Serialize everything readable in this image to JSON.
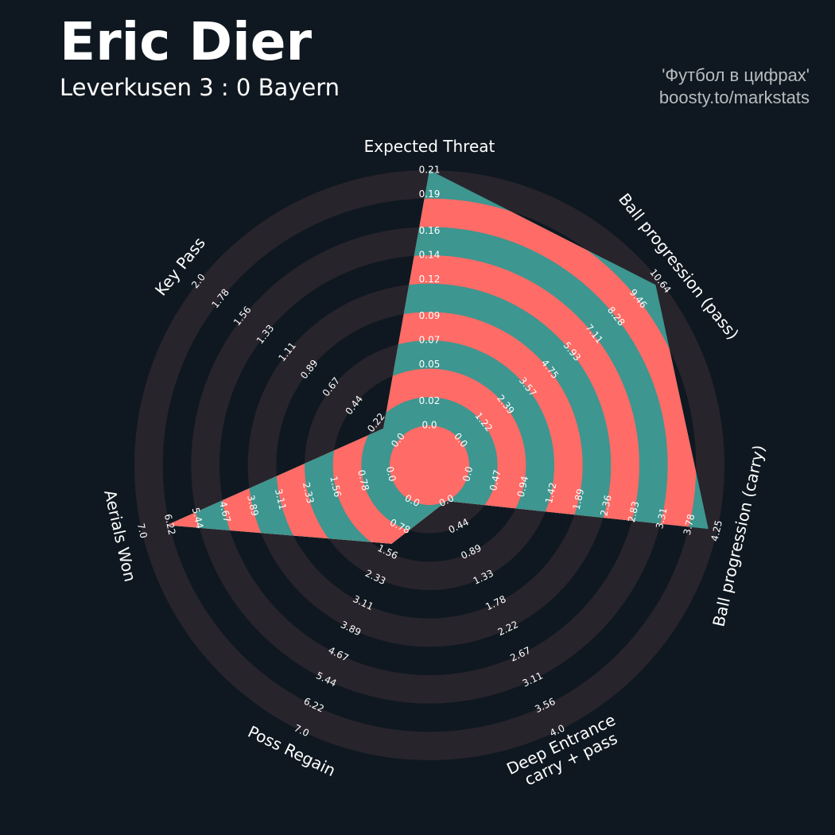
{
  "title": "Eric Dier",
  "subtitle": "Leverkusen 3 : 0 Bayern",
  "credits": [
    "'Футбол в цифрах'",
    "boosty.to/markstats"
  ],
  "chart_data": {
    "type": "radar",
    "parameters": [
      "Expected Threat",
      "Ball progression (pass)",
      "Ball progression (carry)",
      "Deep Entrance\ncarry + pass",
      "Poss Regain",
      "Aerials Won",
      "Key Pass"
    ],
    "ranges": [
      [
        0,
        0.21
      ],
      [
        0,
        10.64
      ],
      [
        0,
        4.25
      ],
      [
        0,
        4
      ],
      [
        0,
        7
      ],
      [
        0,
        7
      ],
      [
        0,
        2
      ]
    ],
    "ticks": [
      [
        {
          "value": 0,
          "label": "0.0"
        },
        0.02,
        0.05,
        0.07,
        0.09,
        0.12,
        0.14,
        0.16,
        0.19,
        0.21
      ],
      [
        {
          "value": 0,
          "label": "0.0"
        },
        1.22,
        2.39,
        3.57,
        4.75,
        5.93,
        7.11,
        8.28,
        9.46,
        10.64
      ],
      [
        {
          "value": 0,
          "label": "0.0"
        },
        0.47,
        0.94,
        1.42,
        1.89,
        2.36,
        2.83,
        3.31,
        3.78,
        4.25
      ],
      [
        {
          "value": 0,
          "label": "0.0"
        },
        0.44,
        0.89,
        1.33,
        1.78,
        2.22,
        2.67,
        3.11,
        3.56,
        {
          "value": 4,
          "label": "4.0"
        }
      ],
      [
        {
          "value": 0,
          "label": "0.0"
        },
        0.78,
        1.56,
        2.33,
        3.11,
        3.89,
        4.67,
        5.44,
        6.22,
        {
          "value": 7,
          "label": "7.0"
        }
      ],
      [
        {
          "value": 0,
          "label": "0.0"
        },
        0.78,
        1.56,
        2.33,
        3.11,
        3.89,
        4.67,
        5.44,
        6.22,
        {
          "value": 7,
          "label": "7.0"
        }
      ],
      [
        {
          "value": 0,
          "label": "0.0"
        },
        0.22,
        0.44,
        0.67,
        0.89,
        1.11,
        1.33,
        1.56,
        1.78,
        {
          "value": 2,
          "label": "2.0"
        }
      ]
    ],
    "values": [
      0.21,
      10.4,
      4.1,
      0,
      1.3,
      6.3,
      0.15
    ],
    "color": "#3d9690",
    "ring_color": "#ff6b66"
  }
}
